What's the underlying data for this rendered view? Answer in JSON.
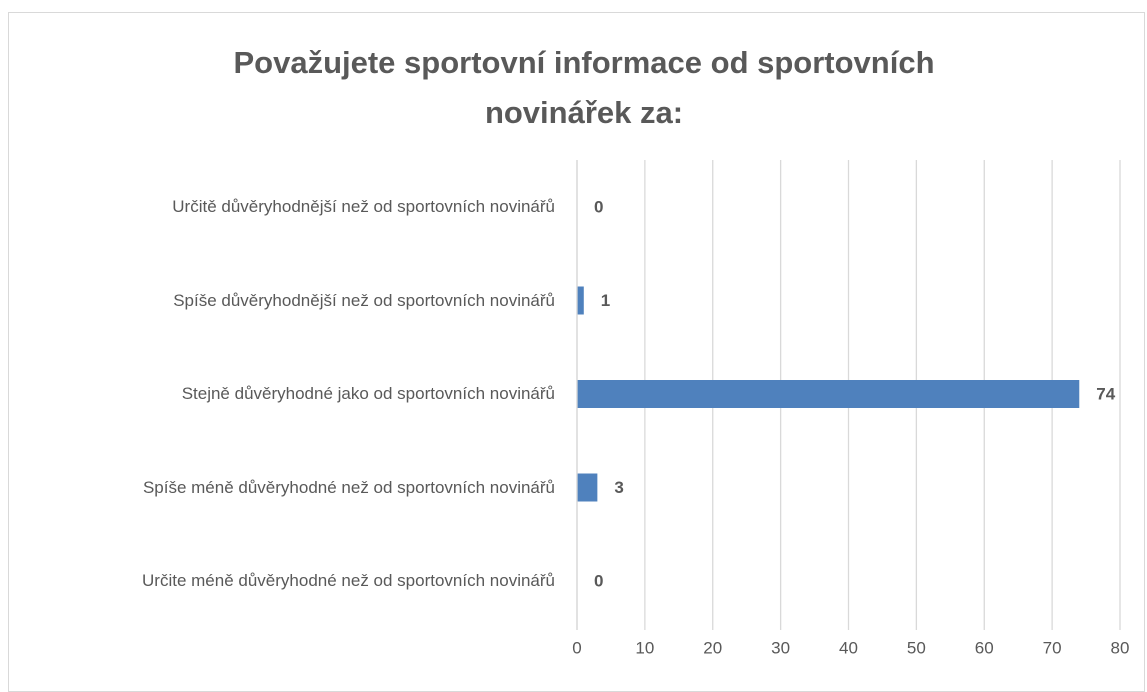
{
  "chart_data": {
    "type": "bar",
    "orientation": "horizontal",
    "title": "Považujete sportovní informace od sportovních novinářek za:",
    "categories": [
      "Určitě důvěryhodnější než od sportovních novinářů",
      "Spíše důvěryhodnější než od sportovních novinářů",
      "Stejně důvěryhodné jako od sportovních novinářů",
      "Spíše méně důvěryhodné než od sportovních novinářů",
      "Určite méně důvěryhodné než od sportovních novinářů"
    ],
    "values": [
      0,
      1,
      74,
      3,
      0
    ],
    "color": "#4f81bd",
    "xlim": [
      0,
      80
    ],
    "xticks": [
      0,
      10,
      20,
      30,
      40,
      50,
      60,
      70,
      80
    ],
    "grid": true
  }
}
